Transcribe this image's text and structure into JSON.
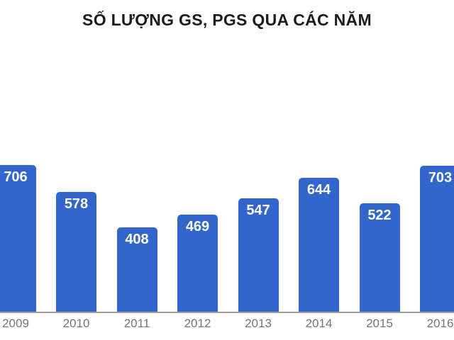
{
  "chart_data": {
    "type": "bar",
    "title": "SỐ LƯỢNG GS, PGS QUA CÁC NĂM",
    "categories": [
      "2009",
      "2010",
      "2011",
      "2012",
      "2013",
      "2014",
      "2015",
      "2016"
    ],
    "values": [
      706,
      578,
      408,
      469,
      547,
      644,
      522,
      703
    ],
    "xlabel": "",
    "ylabel": "",
    "ylim": [
      0,
      800
    ],
    "grid": false,
    "legend": null,
    "value_labels_position": "inside-top",
    "edge_bars_clipped": [
      "2009",
      "2016"
    ],
    "colors": {
      "bar": "#3366cc",
      "value_label": "#ffffff",
      "tick_label": "#757575",
      "axis_line": "#9e9e9e",
      "title": "#1c1c1c",
      "background": "#ffffff"
    }
  }
}
